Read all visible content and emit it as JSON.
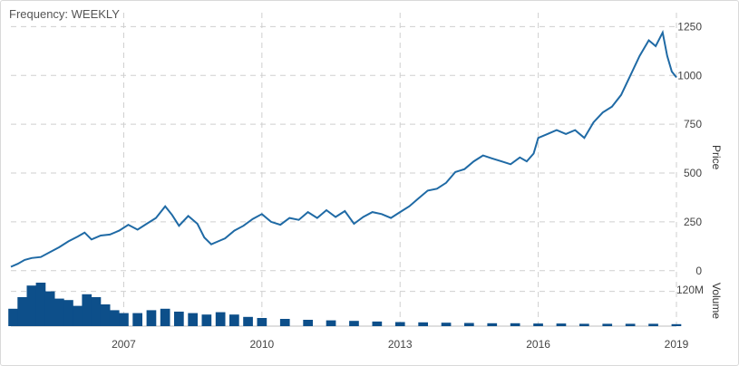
{
  "header": {
    "frequency_label": "Frequency: WEEKLY"
  },
  "colors": {
    "line": "#1f6aa5",
    "volume": "#0d4f8a",
    "grid": "#cfcfcf"
  },
  "chart_data": [
    {
      "type": "line",
      "title": "",
      "xlabel": "",
      "ylabel": "Price",
      "x_tick_labels": [
        "2007",
        "2010",
        "2013",
        "2016",
        "2019"
      ],
      "x_tick_values": [
        2007,
        2010,
        2013,
        2016,
        2019
      ],
      "y_tick_labels": [
        "0",
        "250",
        "500",
        "750",
        "1000",
        "1250"
      ],
      "y_tick_values": [
        0,
        250,
        500,
        750,
        1000,
        1250
      ],
      "xlim": [
        2004.55,
        2019.0
      ],
      "ylim": [
        -15,
        1275
      ],
      "grid": true,
      "series": [
        {
          "name": "",
          "x": [
            2004.55,
            2004.7,
            2004.85,
            2005.0,
            2005.2,
            2005.4,
            2005.6,
            2005.8,
            2006.0,
            2006.15,
            2006.3,
            2006.5,
            2006.7,
            2006.9,
            2007.1,
            2007.3,
            2007.5,
            2007.7,
            2007.9,
            2008.05,
            2008.2,
            2008.4,
            2008.6,
            2008.75,
            2008.9,
            2009.0,
            2009.2,
            2009.4,
            2009.6,
            2009.8,
            2010.0,
            2010.2,
            2010.4,
            2010.6,
            2010.8,
            2011.0,
            2011.2,
            2011.4,
            2011.6,
            2011.8,
            2012.0,
            2012.2,
            2012.4,
            2012.6,
            2012.8,
            2013.0,
            2013.2,
            2013.4,
            2013.6,
            2013.8,
            2014.0,
            2014.2,
            2014.4,
            2014.6,
            2014.8,
            2015.0,
            2015.2,
            2015.4,
            2015.6,
            2015.75,
            2015.9,
            2016.0,
            2016.2,
            2016.4,
            2016.6,
            2016.8,
            2017.0,
            2017.2,
            2017.4,
            2017.6,
            2017.8,
            2018.0,
            2018.2,
            2018.4,
            2018.55,
            2018.7,
            2018.8,
            2018.9,
            2019.0
          ],
          "y": [
            20,
            35,
            55,
            65,
            70,
            95,
            120,
            150,
            175,
            195,
            160,
            180,
            185,
            205,
            235,
            210,
            240,
            270,
            330,
            285,
            230,
            280,
            240,
            170,
            135,
            145,
            165,
            205,
            230,
            265,
            290,
            250,
            235,
            270,
            260,
            300,
            270,
            310,
            275,
            305,
            240,
            275,
            300,
            290,
            270,
            300,
            330,
            370,
            410,
            420,
            450,
            505,
            520,
            560,
            590,
            575,
            560,
            545,
            580,
            560,
            600,
            680,
            700,
            720,
            700,
            720,
            680,
            760,
            810,
            840,
            900,
            1000,
            1100,
            1180,
            1150,
            1220,
            1100,
            1020,
            990
          ]
        }
      ]
    },
    {
      "type": "bar",
      "title": "",
      "ylabel": "Volume",
      "y_tick_labels": [
        "120M"
      ],
      "y_tick_values": [
        120
      ],
      "ylim": [
        0,
        150
      ],
      "units": "M",
      "series": [
        {
          "name": "",
          "x": [
            2004.6,
            2004.8,
            2005.0,
            2005.2,
            2005.4,
            2005.6,
            2005.8,
            2006.0,
            2006.2,
            2006.4,
            2006.6,
            2006.8,
            2007.0,
            2007.3,
            2007.6,
            2007.9,
            2008.2,
            2008.5,
            2008.8,
            2009.1,
            2009.4,
            2009.7,
            2010.0,
            2010.5,
            2011.0,
            2011.5,
            2012.0,
            2012.5,
            2013.0,
            2013.5,
            2014.0,
            2014.5,
            2015.0,
            2015.5,
            2016.0,
            2016.5,
            2017.0,
            2017.5,
            2018.0,
            2018.5,
            2019.0
          ],
          "values": [
            60,
            100,
            140,
            150,
            120,
            95,
            90,
            70,
            110,
            100,
            75,
            55,
            45,
            45,
            55,
            60,
            50,
            45,
            40,
            48,
            40,
            32,
            28,
            25,
            22,
            20,
            18,
            16,
            14,
            13,
            12,
            11,
            10,
            10,
            9,
            9,
            8,
            8,
            8,
            8,
            7
          ]
        }
      ]
    }
  ]
}
